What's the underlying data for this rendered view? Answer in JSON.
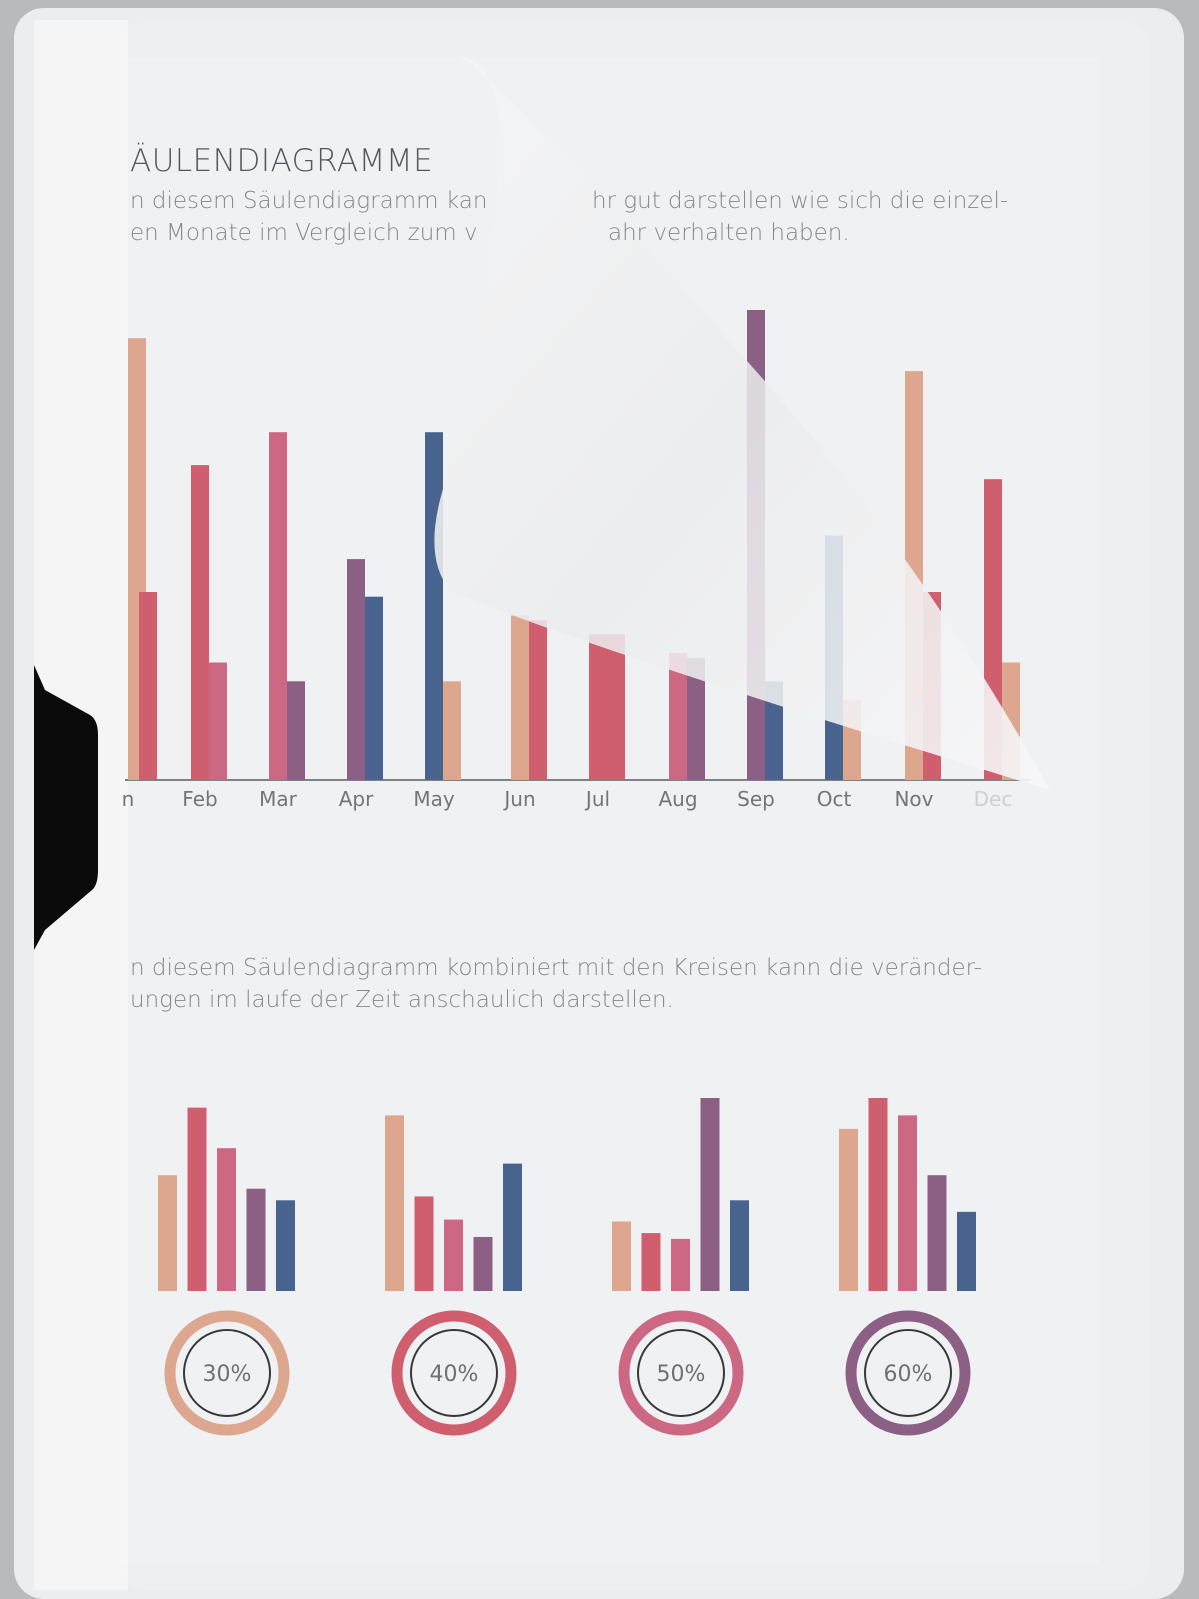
{
  "document": {
    "title": "ÄULENDIAGRAMME",
    "intro_line1_left": "n diesem Säulendiagramm kan",
    "intro_line1_right": "hr gut darstellen wie sich die einzel-",
    "intro_line2_left": "en Monate im Vergleich zum v",
    "intro_line2_right": "ahr verhalten haben.",
    "second_line1": "n diesem Säulendiagramm kombiniert mit den Kreisen kann  die veränder-",
    "second_line2": "ungen im laufe der Zeit anschaulich darstellen."
  },
  "colors": {
    "salmon": "#d99a80",
    "red": "#c9485a",
    "pink": "#c75474",
    "purple": "#7c4a73",
    "blue": "#2f4f7f",
    "clip": "#0b0b0b"
  },
  "chart_data": [
    {
      "type": "bar",
      "title": "",
      "categories": [
        "Jan",
        "Feb",
        "Mar",
        "Apr",
        "May",
        "Jun",
        "Jul",
        "Aug",
        "Sep",
        "Oct",
        "Nov",
        "Dec"
      ],
      "category_labels_visible": [
        "n",
        "Feb",
        "Mar",
        "Apr",
        "May",
        "Jun",
        "Jul",
        "Aug",
        "Sep",
        "Oct",
        "Nov",
        "Dec"
      ],
      "bars": [
        {
          "values": [
            94,
            40
          ],
          "colors": [
            "salmon",
            "red"
          ]
        },
        {
          "values": [
            67,
            25
          ],
          "colors": [
            "red",
            "pink"
          ]
        },
        {
          "values": [
            74,
            21
          ],
          "colors": [
            "pink",
            "purple"
          ]
        },
        {
          "values": [
            47,
            39
          ],
          "colors": [
            "purple",
            "blue"
          ]
        },
        {
          "values": [
            74,
            21
          ],
          "colors": [
            "blue",
            "salmon"
          ]
        },
        {
          "values": [
            35,
            34
          ],
          "colors": [
            "salmon",
            "red"
          ]
        },
        {
          "values": [
            31,
            31
          ],
          "colors": [
            "red",
            "red"
          ]
        },
        {
          "values": [
            27,
            26
          ],
          "colors": [
            "pink",
            "purple"
          ]
        },
        {
          "values": [
            100,
            21
          ],
          "colors": [
            "purple",
            "blue"
          ]
        },
        {
          "values": [
            52,
            17
          ],
          "colors": [
            "blue",
            "salmon"
          ]
        },
        {
          "values": [
            87,
            40
          ],
          "colors": [
            "salmon",
            "red"
          ]
        },
        {
          "values": [
            64,
            25
          ],
          "colors": [
            "red",
            "salmon"
          ]
        }
      ],
      "ylim": [
        0,
        100
      ],
      "grid": false,
      "legend": "none"
    },
    {
      "type": "bar",
      "title": "",
      "groups": [
        {
          "values": [
            60,
            95,
            74,
            53,
            47
          ],
          "percent": "30%",
          "ring_color": "salmon"
        },
        {
          "values": [
            91,
            49,
            37,
            28,
            66
          ],
          "percent": "40%",
          "ring_color": "red"
        },
        {
          "values": [
            36,
            30,
            27,
            100,
            47
          ],
          "percent": "50%",
          "ring_color": "pink"
        },
        {
          "values": [
            84,
            100,
            91,
            60,
            41
          ],
          "percent": "60%",
          "ring_color": "purple"
        }
      ],
      "bar_colors": [
        "salmon",
        "red",
        "pink",
        "purple",
        "blue"
      ],
      "ylim": [
        0,
        100
      ],
      "grid": false,
      "legend": "none"
    }
  ]
}
